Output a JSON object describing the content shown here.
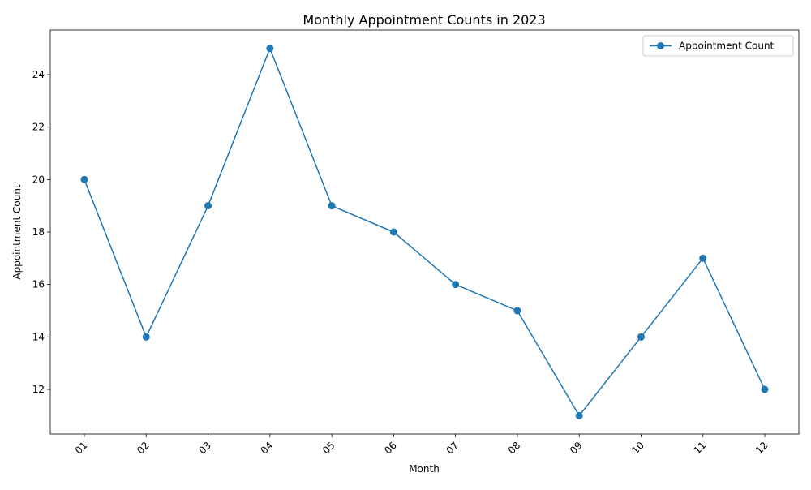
{
  "chart_data": {
    "type": "line",
    "title": "Monthly Appointment Counts in 2023",
    "xlabel": "Month",
    "ylabel": "Appointment Count",
    "categories": [
      "01",
      "02",
      "03",
      "04",
      "05",
      "06",
      "07",
      "08",
      "09",
      "10",
      "11",
      "12"
    ],
    "series": [
      {
        "name": "Appointment Count",
        "values": [
          20,
          14,
          19,
          25,
          19,
          18,
          16,
          15,
          11,
          14,
          17,
          12
        ],
        "color": "#1f77b4",
        "marker": "circle"
      }
    ],
    "yticks": [
      12,
      14,
      16,
      18,
      20,
      22,
      24
    ],
    "ylim": [
      10.3,
      25.7
    ],
    "xtick_rotation": -45,
    "grid": false,
    "legend_position": "top-right"
  }
}
